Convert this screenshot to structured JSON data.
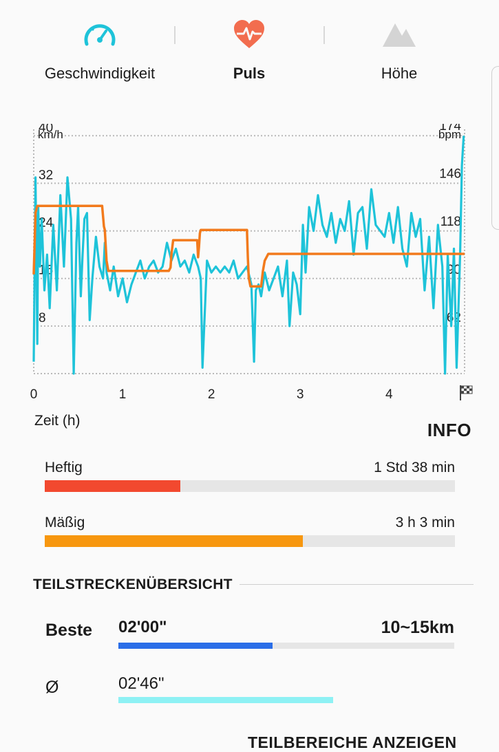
{
  "tabs": [
    {
      "label": "Geschwindigkeit",
      "icon": "speedometer-icon",
      "active": false
    },
    {
      "label": "Puls",
      "icon": "heart-rate-icon",
      "active": true
    },
    {
      "label": "Höhe",
      "icon": "mountain-icon",
      "active": false
    }
  ],
  "colors": {
    "speed": "#1ec3d9",
    "pulse_line": "#f27a1c",
    "heftig": "#f2492f",
    "maessig": "#f7970f",
    "beste": "#2a6ee8",
    "avg": "#8ef1f4",
    "grid": "#b8b8b8"
  },
  "chart_data": {
    "type": "line",
    "xlabel": "Zeit (h)",
    "x_ticks": [
      "0",
      "1",
      "2",
      "3",
      "4"
    ],
    "xlim": [
      0,
      4.85
    ],
    "end_marker": "finish-flag-icon",
    "left_axis": {
      "unit": "km/h",
      "ticks": [
        8,
        16,
        24,
        32,
        40
      ],
      "range": [
        0,
        42
      ]
    },
    "right_axis": {
      "unit": "bpm",
      "ticks": [
        62,
        90,
        118,
        146,
        174
      ],
      "range": [
        34,
        180
      ]
    },
    "grid": "dotted",
    "series": [
      {
        "axis": "left",
        "color": "#1ec3d9",
        "x": [
          0.0,
          0.02,
          0.04,
          0.05,
          0.07,
          0.09,
          0.12,
          0.15,
          0.18,
          0.22,
          0.26,
          0.3,
          0.34,
          0.38,
          0.42,
          0.45,
          0.48,
          0.5,
          0.53,
          0.55,
          0.57,
          0.6,
          0.63,
          0.66,
          0.7,
          0.74,
          0.78,
          0.8,
          0.82,
          0.86,
          0.9,
          0.95,
          1.0,
          1.05,
          1.1,
          1.15,
          1.2,
          1.25,
          1.3,
          1.35,
          1.4,
          1.45,
          1.5,
          1.55,
          1.6,
          1.65,
          1.7,
          1.75,
          1.8,
          1.85,
          1.88,
          1.9,
          1.95,
          2.0,
          2.05,
          2.1,
          2.15,
          2.2,
          2.25,
          2.3,
          2.35,
          2.4,
          2.45,
          2.48,
          2.5,
          2.53,
          2.56,
          2.6,
          2.65,
          2.7,
          2.75,
          2.8,
          2.85,
          2.88,
          2.92,
          2.96,
          3.0,
          3.03,
          3.06,
          3.1,
          3.15,
          3.2,
          3.25,
          3.3,
          3.35,
          3.4,
          3.45,
          3.5,
          3.55,
          3.6,
          3.65,
          3.7,
          3.75,
          3.8,
          3.85,
          3.9,
          3.95,
          4.0,
          4.05,
          4.1,
          4.15,
          4.2,
          4.25,
          4.3,
          4.35,
          4.4,
          4.45,
          4.5,
          4.55,
          4.6,
          4.63,
          4.66,
          4.7,
          4.73,
          4.76,
          4.8,
          4.82,
          4.84
        ],
        "y": [
          2,
          33,
          5,
          28,
          18,
          26,
          14,
          20,
          11,
          25,
          14,
          30,
          18,
          33,
          26,
          0,
          22,
          28,
          13,
          20,
          26,
          27,
          9,
          16,
          23,
          18,
          16,
          22,
          17,
          14,
          18,
          13,
          16,
          12,
          15,
          17,
          19,
          16,
          18,
          19,
          17,
          18,
          22,
          19,
          21,
          18,
          19,
          17,
          20,
          18,
          16,
          1,
          19,
          17,
          18,
          17,
          18,
          17,
          19,
          16,
          17,
          18,
          15,
          2,
          14,
          15,
          13,
          17,
          14,
          16,
          18,
          13,
          19,
          8,
          17,
          15,
          10,
          25,
          17,
          28,
          24,
          30,
          25,
          23,
          27,
          22,
          26,
          24,
          29,
          20,
          27,
          28,
          21,
          31,
          25,
          24,
          23,
          27,
          22,
          28,
          21,
          18,
          27,
          23,
          26,
          14,
          23,
          11,
          25,
          18,
          0,
          20,
          8,
          21,
          1,
          20,
          35,
          40
        ]
      },
      {
        "axis": "right",
        "color": "#f27a1c",
        "x": [
          0.0,
          0.02,
          0.04,
          0.77,
          0.79,
          0.8,
          0.82,
          0.84,
          1.52,
          1.54,
          1.55,
          1.57,
          1.84,
          1.85,
          1.86,
          1.87,
          1.88,
          2.4,
          2.41,
          2.42,
          2.44,
          2.56,
          2.58,
          2.6,
          2.62,
          2.64,
          4.85
        ],
        "y": [
          92,
          128,
          132,
          132,
          120,
          118,
          100,
          94,
          94,
          96,
          104,
          112,
          112,
          102,
          108,
          116,
          118,
          118,
          102,
          90,
          85,
          85,
          94,
          100,
          102,
          104,
          104
        ]
      }
    ]
  },
  "info": {
    "title": "INFO"
  },
  "zones": [
    {
      "name": "Heftig",
      "duration": "1 Std 38 min",
      "fraction": 0.33,
      "color": "#f2492f"
    },
    {
      "name": "Mäßig",
      "duration": "3 h 3 min",
      "fraction": 0.63,
      "color": "#f7970f"
    }
  ],
  "splits": {
    "title": "TEILSTRECKENÜBERSICHT",
    "best": {
      "label": "Beste",
      "time": "02'00\"",
      "range": "10~15km",
      "fraction": 0.46,
      "color": "#2a6ee8"
    },
    "avg": {
      "label": "Ø",
      "time": "02'46\"",
      "fraction": 0.64,
      "color": "#8ef1f4"
    }
  },
  "footer": {
    "link": "TEILBEREICHE ANZEIGEN"
  }
}
